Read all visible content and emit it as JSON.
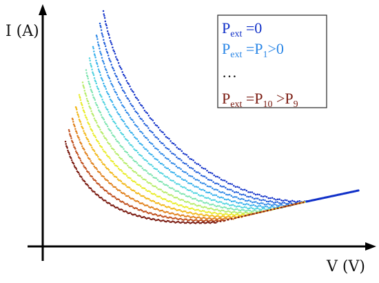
{
  "chart_data": {
    "type": "scatter",
    "xlabel": "V (V)",
    "ylabel": "I (A)",
    "grid": false,
    "legend_position": "top-right",
    "series_count": 11,
    "colors": [
      "#1030c8",
      "#1c5ad8",
      "#2a86e6",
      "#36b0ec",
      "#4fd3df",
      "#7ee4b0",
      "#b7ec6a",
      "#e9ec2a",
      "#f2b81a",
      "#e0801c",
      "#c0501e",
      "#7a1a10"
    ],
    "legend": [
      {
        "prefix": "P",
        "sub": "ext",
        "text": " =0",
        "color": "#1030c8"
      },
      {
        "prefix": "P",
        "sub": "ext",
        "text": " =P",
        "sub2": "1",
        "tail": ">0",
        "color": "#2a86e6"
      },
      {
        "prefix": "",
        "sub": "",
        "text": "…",
        "color": "#111111"
      },
      {
        "prefix": "P",
        "sub": "ext",
        "text": " =P",
        "sub2": "10",
        "tail": " >P",
        "sub3": "9",
        "color": "#7a1a10"
      }
    ]
  }
}
